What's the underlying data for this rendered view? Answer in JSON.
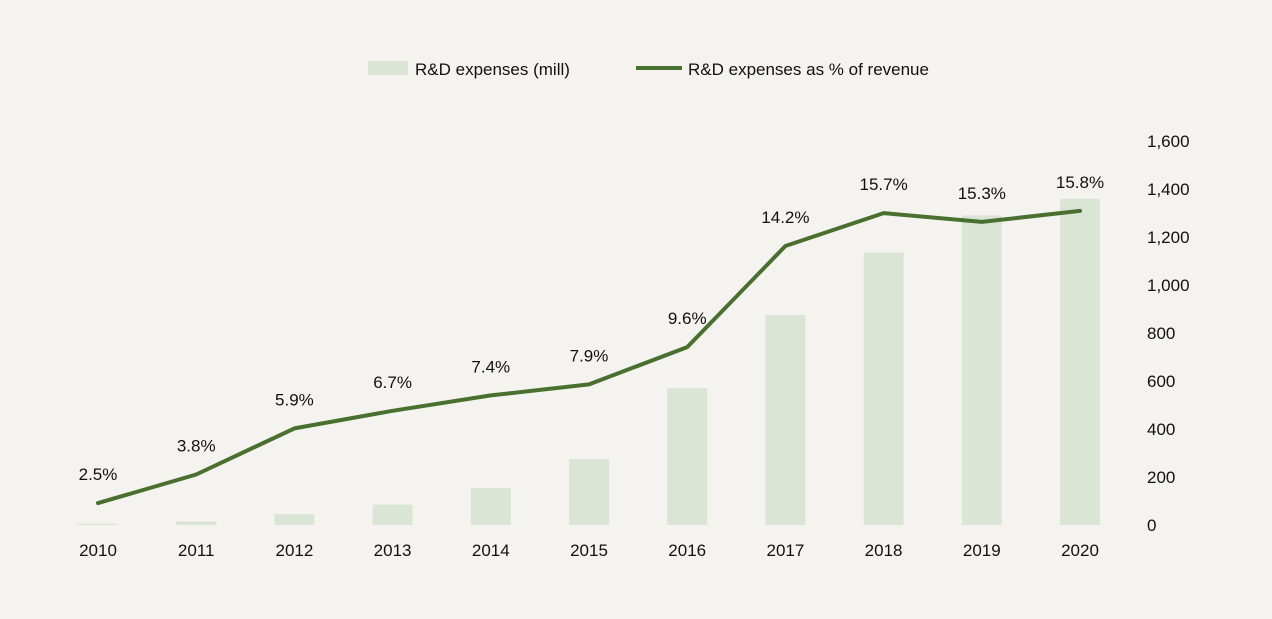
{
  "chart_data": {
    "type": "bar+line",
    "categories": [
      "2010",
      "2011",
      "2012",
      "2013",
      "2014",
      "2015",
      "2016",
      "2017",
      "2018",
      "2019",
      "2020"
    ],
    "series": [
      {
        "name": "R&D expenses (mill)",
        "type": "bar",
        "axis": "right",
        "values": [
          5,
          15,
          45,
          85,
          155,
          275,
          570,
          875,
          1135,
          1290,
          1360
        ],
        "color": "#dbe5d5"
      },
      {
        "name": "R&D expenses as % of revenue",
        "type": "line",
        "values": [
          2.5,
          3.8,
          5.9,
          6.7,
          7.4,
          7.9,
          9.6,
          14.2,
          15.7,
          15.3,
          15.8
        ],
        "labels": [
          "2.5%",
          "3.8%",
          "5.9%",
          "6.7%",
          "7.4%",
          "7.9%",
          "9.6%",
          "14.2%",
          "15.7%",
          "15.3%",
          "15.8%"
        ],
        "color": "#4a7030"
      }
    ],
    "y_right": {
      "ticks": [
        0,
        200,
        400,
        600,
        800,
        1000,
        1200,
        1400,
        1600
      ],
      "tick_labels": [
        "0",
        "200",
        "400",
        "600",
        "800",
        "1,000",
        "1,200",
        "1,400",
        "1,600"
      ],
      "ylim": [
        0,
        1600
      ]
    },
    "y_line": {
      "ylim": [
        0,
        18
      ],
      "visible": false
    },
    "legend": {
      "placement": "top-center"
    },
    "grid": false,
    "title": "",
    "xlabel": "",
    "ylabel": ""
  }
}
